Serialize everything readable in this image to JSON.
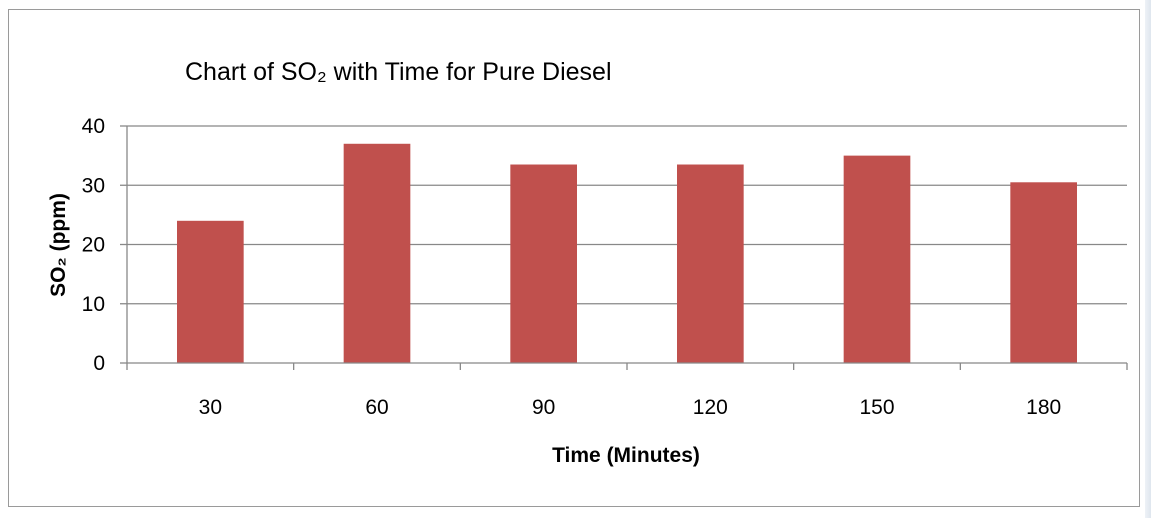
{
  "chart_data": {
    "type": "bar",
    "title": "Chart of SO₂ with Time for Pure Diesel",
    "xlabel": "Time (Minutes)",
    "ylabel": "SO₂ (ppm)",
    "categories": [
      "30",
      "60",
      "90",
      "120",
      "150",
      "180"
    ],
    "series": [
      {
        "values": [
          24,
          37,
          33.5,
          33.5,
          35,
          30.5
        ]
      }
    ],
    "ylim": [
      0,
      40
    ],
    "yticks": [
      "0",
      "10",
      "20",
      "30",
      "40"
    ],
    "grid": true,
    "legend": "none",
    "colors": {
      "bar": "#c0504d",
      "grid": "#888888",
      "axis": "#888888"
    }
  }
}
